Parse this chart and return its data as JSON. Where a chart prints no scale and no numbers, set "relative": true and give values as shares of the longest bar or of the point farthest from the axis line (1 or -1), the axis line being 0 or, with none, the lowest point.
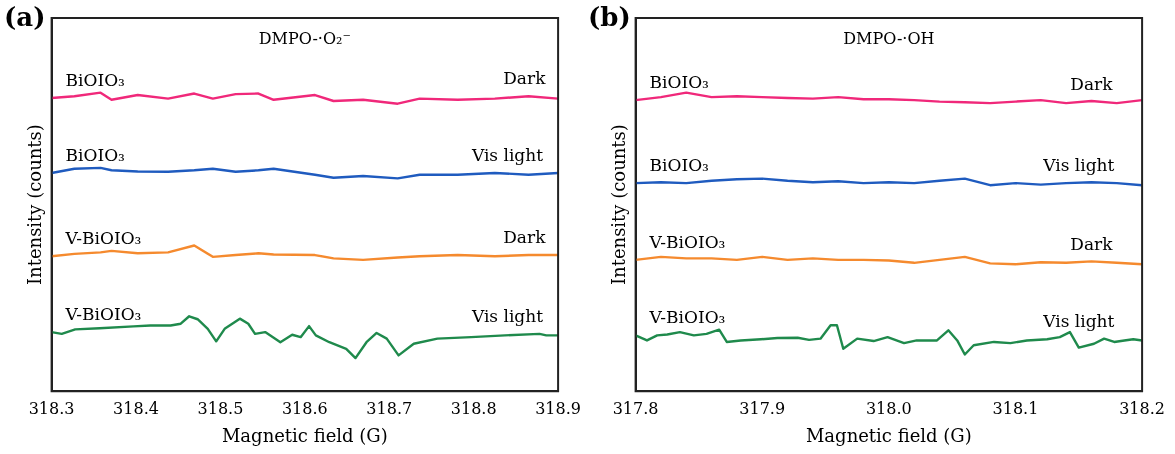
{
  "chart_data": [
    {
      "type": "line",
      "title": "DMPO-·O₂⁻",
      "xlabel": "Magnetic field (G)",
      "ylabel": "Intensity (counts)",
      "relative": true,
      "xlim": [
        318.3,
        318.9
      ],
      "xticks": [
        318.3,
        318.4,
        318.5,
        318.6,
        318.7,
        318.8,
        318.9
      ],
      "tick_labels": "x",
      "legend": false,
      "marker": "none",
      "line_style": "solid",
      "annotations": [
        "(a)",
        {
          "text": "Dark",
          "x": 318.86,
          "y": 0.988
        },
        {
          "text": "Vis light",
          "x": 318.84,
          "y": 0.731
        },
        {
          "text": "Dark",
          "x": 318.86,
          "y": 0.456
        },
        {
          "text": "Vis light",
          "x": 318.84,
          "y": 0.192
        }
      ],
      "series": [
        {
          "name": "BiOIO₃",
          "color": "#f0287a",
          "x": [
            318.3,
            318.327,
            318.358,
            318.371,
            318.402,
            318.438,
            318.469,
            318.491,
            318.518,
            318.545,
            318.563,
            318.612,
            318.634,
            318.669,
            318.71,
            318.736,
            318.781,
            318.825,
            318.865,
            318.9
          ],
          "values": [
            0.982,
            0.988,
            1.0,
            0.976,
            0.992,
            0.98,
            0.997,
            0.98,
            0.995,
            0.997,
            0.976,
            0.992,
            0.972,
            0.976,
            0.963,
            0.98,
            0.976,
            0.98,
            0.988,
            0.98
          ]
        },
        {
          "name": "BiOIO₃",
          "color": "#1f5bbf",
          "x": [
            318.3,
            318.327,
            318.358,
            318.371,
            318.402,
            318.438,
            318.469,
            318.491,
            318.518,
            318.545,
            318.563,
            318.612,
            318.634,
            318.669,
            318.71,
            318.736,
            318.781,
            318.825,
            318.865,
            318.9
          ],
          "values": [
            0.731,
            0.745,
            0.748,
            0.74,
            0.736,
            0.735,
            0.74,
            0.745,
            0.735,
            0.74,
            0.745,
            0.725,
            0.715,
            0.721,
            0.713,
            0.725,
            0.725,
            0.731,
            0.725,
            0.731
          ]
        },
        {
          "name": "V-BiOIO₃",
          "color": "#f58a2e",
          "x": [
            318.3,
            318.327,
            318.358,
            318.371,
            318.402,
            318.438,
            318.469,
            318.491,
            318.518,
            318.545,
            318.563,
            318.612,
            318.634,
            318.669,
            318.71,
            318.736,
            318.781,
            318.825,
            318.865,
            318.9
          ],
          "values": [
            0.452,
            0.46,
            0.465,
            0.47,
            0.462,
            0.465,
            0.488,
            0.45,
            0.456,
            0.462,
            0.458,
            0.456,
            0.445,
            0.44,
            0.448,
            0.452,
            0.456,
            0.452,
            0.456,
            0.456
          ]
        },
        {
          "name": "V-BiOIO₃",
          "color": "#1f8a4c",
          "x": [
            318.3,
            318.312,
            318.328,
            318.357,
            318.397,
            318.417,
            318.441,
            318.453,
            318.463,
            318.473,
            318.485,
            318.495,
            318.505,
            318.523,
            318.533,
            318.541,
            318.553,
            318.571,
            318.585,
            318.595,
            318.605,
            318.613,
            318.629,
            318.649,
            318.66,
            318.673,
            318.685,
            318.697,
            318.711,
            318.729,
            318.757,
            318.797,
            318.837,
            318.878,
            318.886,
            318.9
          ],
          "values": [
            0.198,
            0.192,
            0.207,
            0.211,
            0.217,
            0.22,
            0.22,
            0.226,
            0.251,
            0.241,
            0.209,
            0.167,
            0.209,
            0.243,
            0.226,
            0.192,
            0.198,
            0.164,
            0.189,
            0.181,
            0.218,
            0.187,
            0.164,
            0.142,
            0.111,
            0.164,
            0.195,
            0.176,
            0.12,
            0.159,
            0.176,
            0.181,
            0.187,
            0.192,
            0.187,
            0.187
          ]
        }
      ]
    },
    {
      "type": "line",
      "title": "DMPO-·OH",
      "xlabel": "Magnetic field (G)",
      "ylabel": "Intensity (counts)",
      "relative": true,
      "xlim": [
        317.8,
        318.2
      ],
      "xticks": [
        {
          "value": 317.8,
          "label": "317.8"
        },
        {
          "value": 317.9,
          "label": "317.9"
        },
        {
          "value": 318.0,
          "label": "318.0"
        },
        {
          "value": 318.1,
          "label": "318.1"
        },
        {
          "value": 318.2,
          "label": "318.2"
        }
      ],
      "tick_labels": "x",
      "legend": false,
      "marker": "none",
      "line_style": "solid",
      "annotations": [
        "(b)",
        {
          "text": "Dark",
          "x": 318.16,
          "y": 0.97
        },
        {
          "text": "Vis light",
          "x": 318.15,
          "y": 0.697
        },
        {
          "text": "Dark",
          "x": 318.16,
          "y": 0.432
        },
        {
          "text": "Vis light",
          "x": 318.15,
          "y": 0.176
        }
      ],
      "series": [
        {
          "name": "BiOIO₃",
          "color": "#f0287a",
          "x": [
            317.8,
            317.82,
            317.84,
            317.86,
            317.88,
            317.9,
            317.92,
            317.94,
            317.96,
            317.98,
            318.0,
            318.02,
            318.04,
            318.06,
            318.08,
            318.1,
            318.12,
            318.14,
            318.16,
            318.18,
            318.2
          ],
          "values": [
            0.975,
            0.985,
            1.0,
            0.985,
            0.988,
            0.985,
            0.982,
            0.98,
            0.985,
            0.978,
            0.978,
            0.975,
            0.97,
            0.968,
            0.965,
            0.97,
            0.975,
            0.965,
            0.972,
            0.965,
            0.975
          ]
        },
        {
          "name": "BiOIO₃",
          "color": "#1f5bbf",
          "x": [
            317.8,
            317.82,
            317.84,
            317.86,
            317.88,
            317.9,
            317.92,
            317.94,
            317.96,
            317.98,
            318.0,
            318.02,
            318.04,
            318.06,
            318.08,
            318.1,
            318.12,
            318.14,
            318.16,
            318.18,
            318.2
          ],
          "values": [
            0.697,
            0.7,
            0.697,
            0.705,
            0.71,
            0.712,
            0.705,
            0.7,
            0.703,
            0.697,
            0.7,
            0.697,
            0.705,
            0.712,
            0.69,
            0.697,
            0.692,
            0.697,
            0.7,
            0.697,
            0.69
          ]
        },
        {
          "name": "V-BiOIO₃",
          "color": "#f58a2e",
          "x": [
            317.8,
            317.82,
            317.84,
            317.86,
            317.88,
            317.9,
            317.92,
            317.94,
            317.96,
            317.98,
            318.0,
            318.02,
            318.04,
            318.06,
            318.08,
            318.1,
            318.12,
            318.14,
            318.16,
            318.18,
            318.2
          ],
          "values": [
            0.44,
            0.45,
            0.445,
            0.445,
            0.44,
            0.45,
            0.44,
            0.445,
            0.44,
            0.44,
            0.438,
            0.43,
            0.44,
            0.45,
            0.428,
            0.425,
            0.432,
            0.43,
            0.435,
            0.43,
            0.425
          ]
        },
        {
          "name": "V-BiOIO₃",
          "color": "#1f8a4c",
          "x": [
            317.8,
            317.809,
            317.817,
            317.825,
            317.835,
            317.846,
            317.856,
            317.866,
            317.872,
            317.883,
            317.899,
            317.912,
            317.928,
            317.937,
            317.946,
            317.954,
            317.959,
            317.964,
            317.975,
            317.988,
            317.999,
            318.012,
            318.022,
            318.038,
            318.047,
            318.054,
            318.06,
            318.067,
            318.083,
            318.096,
            318.109,
            318.125,
            318.135,
            318.143,
            318.15,
            318.162,
            318.17,
            318.178,
            318.186,
            318.193,
            318.2
          ],
          "values": [
            0.187,
            0.17,
            0.187,
            0.19,
            0.198,
            0.187,
            0.192,
            0.206,
            0.165,
            0.17,
            0.174,
            0.178,
            0.179,
            0.172,
            0.176,
            0.221,
            0.221,
            0.142,
            0.176,
            0.168,
            0.181,
            0.161,
            0.17,
            0.17,
            0.204,
            0.17,
            0.123,
            0.154,
            0.165,
            0.161,
            0.17,
            0.174,
            0.181,
            0.198,
            0.146,
            0.159,
            0.176,
            0.165,
            0.17,
            0.174,
            0.17
          ]
        }
      ]
    }
  ]
}
